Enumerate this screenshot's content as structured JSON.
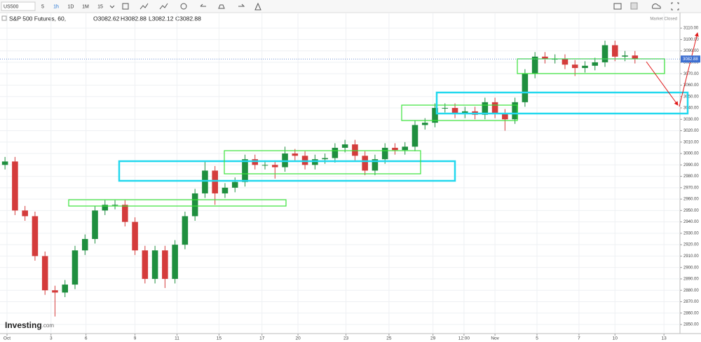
{
  "toolbar": {
    "symbol": "US500",
    "intervals": [
      "5",
      "1h",
      "1D",
      "1M",
      "15"
    ]
  },
  "branding": {
    "logo": "Investing",
    "logo_suffix": ".com"
  },
  "chart_data": {
    "type": "candlestick",
    "title": "S&P 500 Futures, 60,",
    "ohlc_legend": [
      "O3082.62",
      "H3082.88",
      "L3082.12",
      "C3082.88"
    ],
    "status": "Market Closed",
    "last_price": 3082.88,
    "up_color": "#1f8f3f",
    "down_color": "#d43c3c",
    "grid": true,
    "x": [
      0,
      1,
      2,
      3,
      4,
      5,
      6,
      7,
      8,
      9,
      10,
      11,
      12,
      13,
      14,
      15,
      16,
      17,
      18,
      19,
      20,
      21,
      22,
      23,
      24,
      25,
      26,
      27,
      28,
      29,
      30,
      31,
      32,
      33,
      34,
      35,
      36,
      37,
      38,
      39,
      40,
      41,
      42,
      43,
      44,
      45,
      46,
      47,
      48,
      49,
      50,
      51,
      52,
      53,
      54,
      55,
      56,
      57,
      58,
      59,
      60,
      61,
      62,
      63
    ],
    "open": [
      2990,
      2993,
      2950,
      2945,
      2910,
      2880,
      2878,
      2885,
      2915,
      2925,
      2950,
      2955,
      2955,
      2940,
      2915,
      2890,
      2915,
      2890,
      2920,
      2945,
      2965,
      2985,
      2965,
      2970,
      2975,
      2995,
      2990,
      2990,
      2988,
      3000,
      2998,
      2990,
      2995,
      2996,
      3005,
      3008,
      2998,
      2985,
      2995,
      3005,
      3003,
      3006,
      3025,
      3027,
      3040,
      3040,
      3035,
      3037,
      3034,
      3045,
      3035,
      3030,
      3045,
      3070,
      3085,
      3083,
      3083,
      3078,
      3075,
      3077,
      3080,
      3095,
      3085,
      3086
    ],
    "high": [
      2997,
      2997,
      2954,
      2949,
      2914,
      2884,
      2889,
      2919,
      2929,
      2954,
      2959,
      2959,
      2959,
      2944,
      2919,
      2919,
      2919,
      2924,
      2949,
      2969,
      2993,
      2989,
      2974,
      2979,
      2999,
      2999,
      2994,
      2994,
      3006,
      3004,
      3002,
      2999,
      3000,
      3009,
      3012,
      3012,
      3002,
      2999,
      3009,
      3009,
      3010,
      3029,
      3031,
      3044,
      3044,
      3044,
      3041,
      3041,
      3049,
      3049,
      3039,
      3049,
      3074,
      3089,
      3089,
      3087,
      3087,
      3082,
      3081,
      3084,
      3099,
      3099,
      3090,
      3090
    ],
    "low": [
      2986,
      2946,
      2941,
      2906,
      2876,
      2857,
      2874,
      2881,
      2911,
      2921,
      2946,
      2951,
      2936,
      2911,
      2886,
      2886,
      2882,
      2886,
      2916,
      2941,
      2961,
      2955,
      2961,
      2966,
      2971,
      2986,
      2986,
      2978,
      2984,
      2994,
      2986,
      2986,
      2991,
      2992,
      3001,
      2994,
      2981,
      2981,
      2991,
      2999,
      2999,
      3002,
      3021,
      3023,
      3036,
      3031,
      3031,
      3030,
      3030,
      3031,
      3020,
      3026,
      3041,
      3066,
      3079,
      3079,
      3074,
      3068,
      3071,
      3073,
      3076,
      3081,
      3081,
      3079
    ],
    "close": [
      2993,
      2950,
      2945,
      2910,
      2880,
      2878,
      2885,
      2915,
      2925,
      2950,
      2955,
      2955,
      2940,
      2915,
      2890,
      2915,
      2890,
      2920,
      2945,
      2965,
      2985,
      2965,
      2970,
      2975,
      2995,
      2990,
      2990,
      2988,
      3000,
      2998,
      2990,
      2995,
      2996,
      3005,
      3008,
      2998,
      2985,
      2995,
      3005,
      3003,
      3006,
      3025,
      3027,
      3040,
      3040,
      3035,
      3037,
      3034,
      3045,
      3035,
      3030,
      3045,
      3070,
      3085,
      3083,
      3083,
      3078,
      3075,
      3077,
      3080,
      3095,
      3085,
      3086,
      3083
    ],
    "xlim": [
      -0.5,
      67.5
    ],
    "ylim": [
      2842,
      3123
    ],
    "xticks": [
      {
        "value": 0.2,
        "label": "Oct"
      },
      {
        "value": 4.6,
        "label": "3"
      },
      {
        "value": 8.1,
        "label": "6"
      },
      {
        "value": 13.0,
        "label": "9"
      },
      {
        "value": 17.2,
        "label": "11"
      },
      {
        "value": 21.4,
        "label": "15"
      },
      {
        "value": 25.7,
        "label": "17"
      },
      {
        "value": 29.3,
        "label": "20"
      },
      {
        "value": 34.1,
        "label": "23"
      },
      {
        "value": 38.4,
        "label": "25"
      },
      {
        "value": 42.8,
        "label": "29"
      },
      {
        "value": 45.9,
        "label": "12:00"
      },
      {
        "value": 49.0,
        "label": "Nov"
      },
      {
        "value": 53.2,
        "label": "5"
      },
      {
        "value": 57.4,
        "label": "7"
      },
      {
        "value": 61.0,
        "label": "10"
      },
      {
        "value": 65.9,
        "label": "13"
      }
    ],
    "yticks": [
      {
        "value": 2850,
        "label": "2850.00"
      },
      {
        "value": 2860,
        "label": "2860.00"
      },
      {
        "value": 2870,
        "label": "2870.00"
      },
      {
        "value": 2880,
        "label": "2880.00"
      },
      {
        "value": 2890,
        "label": "2890.00"
      },
      {
        "value": 2900,
        "label": "2900.00"
      },
      {
        "value": 2910,
        "label": "2910.00"
      },
      {
        "value": 2920,
        "label": "2920.00"
      },
      {
        "value": 2930,
        "label": "2930.00"
      },
      {
        "value": 2940,
        "label": "2940.00"
      },
      {
        "value": 2950,
        "label": "2950.00"
      },
      {
        "value": 2960,
        "label": "2960.00"
      },
      {
        "value": 2970,
        "label": "2970.00"
      },
      {
        "value": 2980,
        "label": "2980.00"
      },
      {
        "value": 2990,
        "label": "2990.00"
      },
      {
        "value": 3000,
        "label": "3000.00"
      },
      {
        "value": 3010,
        "label": "3010.00"
      },
      {
        "value": 3020,
        "label": "3020.00"
      },
      {
        "value": 3030,
        "label": "3030.00"
      },
      {
        "value": 3040,
        "label": "3040.00"
      },
      {
        "value": 3050,
        "label": "3050.00"
      },
      {
        "value": 3060,
        "label": "3060.00"
      },
      {
        "value": 3070,
        "label": "3070.00"
      },
      {
        "value": 3080,
        "label": "3080.00"
      },
      {
        "value": 3090,
        "label": "3090.00"
      },
      {
        "value": 3100,
        "label": "3100.00"
      },
      {
        "value": 3110,
        "label": "3110.00"
      }
    ]
  }
}
